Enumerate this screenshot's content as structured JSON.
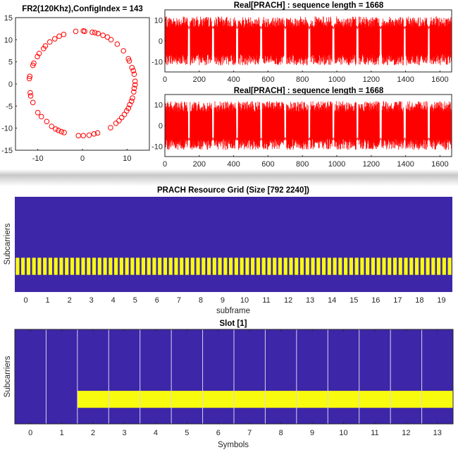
{
  "colors": {
    "marker": "#ff0000",
    "grid_bg": "#3d26a8",
    "grid_fill": "#f9fb0e",
    "axis": "#262626"
  },
  "chart_data": [
    {
      "type": "scatter",
      "title": "FR2(120Khz),ConfigIndex = 143",
      "xlim": [
        -15,
        15
      ],
      "ylim": [
        -15,
        15
      ],
      "xticks": [
        "-10",
        "0",
        "10"
      ],
      "yticks": [
        "15",
        "10",
        "5",
        "0",
        "-5",
        "-10",
        "-15"
      ],
      "marker": "circle-open",
      "points": [
        [
          -1.5,
          11.9
        ],
        [
          0.2,
          12.0
        ],
        [
          0.5,
          11.9
        ],
        [
          2.2,
          11.7
        ],
        [
          2.8,
          11.6
        ],
        [
          3.5,
          11.4
        ],
        [
          4.6,
          11.0
        ],
        [
          5.6,
          10.6
        ],
        [
          6.4,
          10.0
        ],
        [
          7.8,
          9.0
        ],
        [
          9.2,
          7.5
        ],
        [
          10.3,
          5.7
        ],
        [
          10.5,
          5.2
        ],
        [
          11.1,
          3.7
        ],
        [
          11.4,
          3.0
        ],
        [
          11.6,
          2.2
        ],
        [
          11.8,
          0.6
        ],
        [
          11.8,
          -0.2
        ],
        [
          11.6,
          -1.0
        ],
        [
          11.5,
          -1.8
        ],
        [
          11.2,
          -3.2
        ],
        [
          11.0,
          -3.9
        ],
        [
          10.6,
          -4.7
        ],
        [
          10.3,
          -5.5
        ],
        [
          9.9,
          -6.1
        ],
        [
          9.4,
          -6.9
        ],
        [
          8.8,
          -7.6
        ],
        [
          8.2,
          -8.3
        ],
        [
          7.5,
          -8.9
        ],
        [
          6.3,
          -9.9
        ],
        [
          3.4,
          -11.1
        ],
        [
          2.6,
          -11.3
        ],
        [
          1.5,
          -11.6
        ],
        [
          0.2,
          -11.7
        ],
        [
          -0.9,
          -11.7
        ],
        [
          -4.1,
          -11.0
        ],
        [
          -4.7,
          -10.8
        ],
        [
          -5.4,
          -10.5
        ],
        [
          -6.0,
          -10.2
        ],
        [
          -6.9,
          -9.6
        ],
        [
          -8.0,
          -8.5
        ],
        [
          -9.2,
          -7.4
        ],
        [
          -10.0,
          -6.5
        ],
        [
          -11.1,
          -4.2
        ],
        [
          -11.6,
          -2.7
        ],
        [
          -11.7,
          -2.0
        ],
        [
          -11.9,
          1.2
        ],
        [
          -11.8,
          1.7
        ],
        [
          -11.1,
          4.2
        ],
        [
          -10.9,
          4.7
        ],
        [
          -10.1,
          6.2
        ],
        [
          -9.7,
          6.9
        ],
        [
          -8.7,
          8.0
        ],
        [
          -8.3,
          8.6
        ],
        [
          -7.3,
          9.5
        ],
        [
          -6.2,
          10.2
        ],
        [
          -5.2,
          10.8
        ],
        [
          -4.2,
          11.2
        ]
      ]
    },
    {
      "type": "line",
      "title": "Real[PRACH] : sequence length = 1668",
      "xlim": [
        0,
        1668
      ],
      "ylim": [
        -15,
        15
      ],
      "xticks": [
        "0",
        "200",
        "400",
        "600",
        "800",
        "1000",
        "1200",
        "1400",
        "1600"
      ],
      "yticks": [
        "10",
        "0",
        "-10"
      ],
      "length": 1668,
      "amplitude": 11.8,
      "gap_centers": [
        140,
        280,
        420,
        560,
        700,
        840,
        980,
        1120,
        1255,
        1395,
        1535
      ]
    },
    {
      "type": "line",
      "title": "Real[PRACH] : sequence length = 1668",
      "xlim": [
        0,
        1668
      ],
      "ylim": [
        -15,
        15
      ],
      "xticks": [
        "0",
        "200",
        "400",
        "600",
        "800",
        "1000",
        "1200",
        "1400",
        "1600"
      ],
      "yticks": [
        "10",
        "0",
        "-10"
      ],
      "length": 1668,
      "amplitude": 11.8,
      "gap_centers": [
        140,
        280,
        420,
        560,
        700,
        840,
        980,
        1120,
        1255,
        1395,
        1535
      ]
    },
    {
      "type": "heatmap",
      "title": "PRACH Resource Grid (Size [792 2240])",
      "xlabel": "subframe",
      "ylabel": "Subcarriers",
      "xticks": [
        "0",
        "1",
        "2",
        "3",
        "4",
        "5",
        "6",
        "7",
        "8",
        "9",
        "10",
        "11",
        "12",
        "13",
        "14",
        "15",
        "16",
        "17",
        "18",
        "19"
      ],
      "xlim": [
        -0.5,
        19.5
      ],
      "occupied_bars_per_subframe": 4,
      "occupied_band_fraction": [
        0.18,
        0.36
      ]
    },
    {
      "type": "heatmap",
      "title": "Slot [1]",
      "xlabel": "Symbols",
      "ylabel": "Subcarriers",
      "xticks": [
        "0",
        "1",
        "2",
        "3",
        "4",
        "5",
        "6",
        "7",
        "8",
        "9",
        "10",
        "11",
        "12",
        "13"
      ],
      "xlim": [
        -0.5,
        13.5
      ],
      "occupied_symbols": [
        2,
        3,
        4,
        5,
        6,
        7,
        8,
        9,
        10,
        11,
        12,
        13
      ],
      "occupied_band_fraction": [
        0.17,
        0.35
      ]
    }
  ]
}
